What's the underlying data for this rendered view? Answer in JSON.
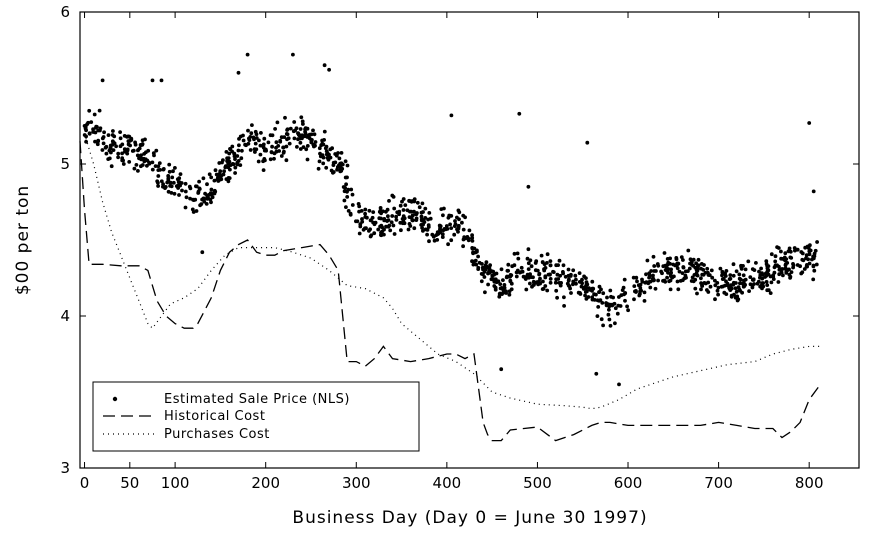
{
  "chart_data": {
    "type": "scatter",
    "title": "",
    "xlabel": "Business Day (Day 0 = June 30 1997)",
    "ylabel": "$00 per ton",
    "xlim": [
      -5,
      855
    ],
    "ylim": [
      3,
      6
    ],
    "x_ticks": [
      0,
      50,
      100,
      200,
      300,
      400,
      500,
      600,
      700,
      800
    ],
    "y_ticks": [
      3,
      4,
      5,
      6
    ],
    "grid": false,
    "legend_position": "bottom-left",
    "series": [
      {
        "name": "Estimated Sale Price (NLS)",
        "style": "points",
        "color": "#000000",
        "trend": [
          [
            0,
            5.25
          ],
          [
            20,
            5.2
          ],
          [
            40,
            5.1
          ],
          [
            60,
            5.1
          ],
          [
            80,
            4.95
          ],
          [
            100,
            4.85
          ],
          [
            120,
            4.75
          ],
          [
            140,
            4.85
          ],
          [
            160,
            5.0
          ],
          [
            180,
            5.15
          ],
          [
            200,
            5.1
          ],
          [
            220,
            5.15
          ],
          [
            240,
            5.2
          ],
          [
            260,
            5.1
          ],
          [
            280,
            5.0
          ],
          [
            290,
            4.85
          ],
          [
            300,
            4.65
          ],
          [
            320,
            4.6
          ],
          [
            340,
            4.65
          ],
          [
            360,
            4.7
          ],
          [
            380,
            4.6
          ],
          [
            400,
            4.6
          ],
          [
            420,
            4.55
          ],
          [
            440,
            4.3
          ],
          [
            460,
            4.2
          ],
          [
            480,
            4.3
          ],
          [
            500,
            4.25
          ],
          [
            520,
            4.25
          ],
          [
            540,
            4.22
          ],
          [
            560,
            4.15
          ],
          [
            580,
            4.05
          ],
          [
            600,
            4.15
          ],
          [
            620,
            4.25
          ],
          [
            640,
            4.28
          ],
          [
            660,
            4.3
          ],
          [
            680,
            4.3
          ],
          [
            700,
            4.2
          ],
          [
            720,
            4.2
          ],
          [
            740,
            4.25
          ],
          [
            760,
            4.3
          ],
          [
            780,
            4.35
          ],
          [
            800,
            4.4
          ],
          [
            810,
            4.4
          ]
        ],
        "point_count": 1300,
        "spread": 0.1,
        "outliers": [
          [
            20,
            5.55
          ],
          [
            75,
            5.55
          ],
          [
            85,
            5.55
          ],
          [
            170,
            5.6
          ],
          [
            180,
            5.72
          ],
          [
            230,
            5.72
          ],
          [
            265,
            5.65
          ],
          [
            270,
            5.62
          ],
          [
            405,
            5.32
          ],
          [
            480,
            5.33
          ],
          [
            555,
            5.14
          ],
          [
            490,
            4.85
          ],
          [
            800,
            5.27
          ],
          [
            805,
            4.82
          ],
          [
            565,
            3.62
          ],
          [
            460,
            3.65
          ],
          [
            130,
            4.42
          ],
          [
            590,
            3.55
          ]
        ]
      },
      {
        "name": "Historical Cost",
        "style": "dashed",
        "color": "#000000",
        "points": [
          [
            -5,
            5.15
          ],
          [
            0,
            4.7
          ],
          [
            5,
            4.34
          ],
          [
            20,
            4.34
          ],
          [
            40,
            4.33
          ],
          [
            60,
            4.33
          ],
          [
            70,
            4.3
          ],
          [
            80,
            4.1
          ],
          [
            90,
            4.0
          ],
          [
            100,
            3.95
          ],
          [
            110,
            3.92
          ],
          [
            120,
            3.92
          ],
          [
            125,
            3.95
          ],
          [
            140,
            4.12
          ],
          [
            150,
            4.3
          ],
          [
            160,
            4.42
          ],
          [
            170,
            4.47
          ],
          [
            180,
            4.5
          ],
          [
            190,
            4.42
          ],
          [
            200,
            4.4
          ],
          [
            210,
            4.4
          ],
          [
            220,
            4.43
          ],
          [
            240,
            4.45
          ],
          [
            260,
            4.47
          ],
          [
            270,
            4.4
          ],
          [
            280,
            4.3
          ],
          [
            285,
            4.0
          ],
          [
            290,
            3.7
          ],
          [
            300,
            3.7
          ],
          [
            310,
            3.67
          ],
          [
            320,
            3.72
          ],
          [
            330,
            3.8
          ],
          [
            340,
            3.72
          ],
          [
            360,
            3.7
          ],
          [
            380,
            3.72
          ],
          [
            400,
            3.75
          ],
          [
            410,
            3.75
          ],
          [
            420,
            3.72
          ],
          [
            430,
            3.75
          ],
          [
            440,
            3.3
          ],
          [
            445,
            3.22
          ],
          [
            450,
            3.18
          ],
          [
            460,
            3.18
          ],
          [
            470,
            3.25
          ],
          [
            500,
            3.27
          ],
          [
            520,
            3.18
          ],
          [
            540,
            3.22
          ],
          [
            560,
            3.28
          ],
          [
            570,
            3.3
          ],
          [
            580,
            3.3
          ],
          [
            600,
            3.28
          ],
          [
            620,
            3.28
          ],
          [
            660,
            3.28
          ],
          [
            680,
            3.28
          ],
          [
            700,
            3.3
          ],
          [
            720,
            3.28
          ],
          [
            740,
            3.26
          ],
          [
            760,
            3.26
          ],
          [
            770,
            3.2
          ],
          [
            780,
            3.24
          ],
          [
            790,
            3.3
          ],
          [
            800,
            3.45
          ],
          [
            810,
            3.53
          ]
        ]
      },
      {
        "name": "Purchases Cost",
        "style": "dotted",
        "color": "#000000",
        "points": [
          [
            0,
            5.2
          ],
          [
            10,
            5.0
          ],
          [
            20,
            4.75
          ],
          [
            30,
            4.55
          ],
          [
            40,
            4.4
          ],
          [
            50,
            4.25
          ],
          [
            60,
            4.1
          ],
          [
            70,
            3.95
          ],
          [
            75,
            3.92
          ],
          [
            85,
            4.0
          ],
          [
            95,
            4.08
          ],
          [
            110,
            4.12
          ],
          [
            125,
            4.18
          ],
          [
            140,
            4.3
          ],
          [
            155,
            4.4
          ],
          [
            170,
            4.45
          ],
          [
            190,
            4.45
          ],
          [
            210,
            4.45
          ],
          [
            230,
            4.42
          ],
          [
            250,
            4.38
          ],
          [
            270,
            4.3
          ],
          [
            290,
            4.2
          ],
          [
            310,
            4.18
          ],
          [
            330,
            4.12
          ],
          [
            340,
            4.05
          ],
          [
            350,
            3.95
          ],
          [
            370,
            3.85
          ],
          [
            390,
            3.75
          ],
          [
            410,
            3.7
          ],
          [
            430,
            3.62
          ],
          [
            450,
            3.5
          ],
          [
            470,
            3.46
          ],
          [
            500,
            3.42
          ],
          [
            530,
            3.41
          ],
          [
            550,
            3.4
          ],
          [
            560,
            3.39
          ],
          [
            570,
            3.4
          ],
          [
            590,
            3.45
          ],
          [
            610,
            3.52
          ],
          [
            630,
            3.56
          ],
          [
            650,
            3.6
          ],
          [
            680,
            3.64
          ],
          [
            710,
            3.68
          ],
          [
            740,
            3.7
          ],
          [
            760,
            3.75
          ],
          [
            780,
            3.78
          ],
          [
            800,
            3.8
          ],
          [
            815,
            3.8
          ]
        ]
      }
    ]
  }
}
